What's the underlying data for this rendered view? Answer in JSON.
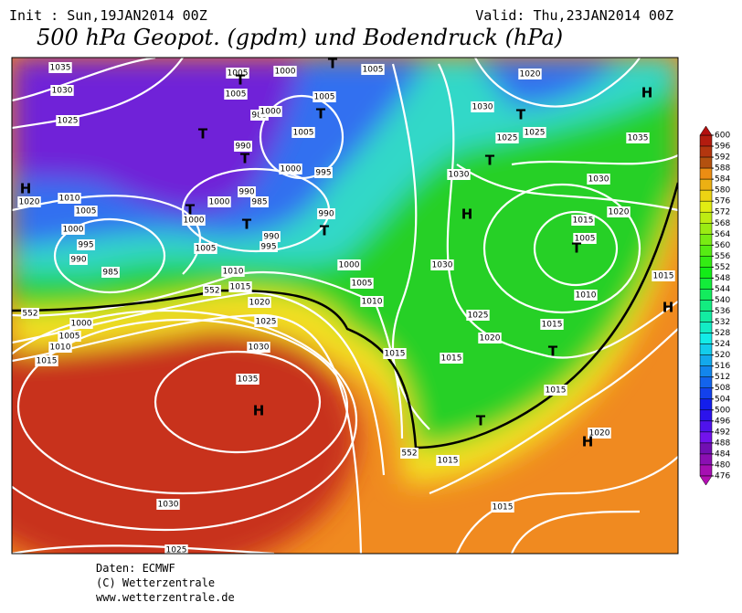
{
  "header": {
    "init": "Init : Sun,19JAN2014 00Z",
    "valid": "Valid: Thu,23JAN2014 00Z",
    "title": "500 hPa Geopot. (gpdm) und Bodendruck (hPa)"
  },
  "colorbar": {
    "ticks": [
      600,
      596,
      592,
      588,
      584,
      580,
      576,
      572,
      568,
      564,
      560,
      556,
      552,
      548,
      544,
      540,
      536,
      532,
      528,
      524,
      520,
      516,
      512,
      508,
      504,
      500,
      496,
      492,
      488,
      484,
      480,
      476
    ]
  },
  "isobar_labels": [
    "1035",
    "1030",
    "1025",
    "1020",
    "1010",
    "1005",
    "1000",
    "995",
    "990",
    "985",
    "1005",
    "1000",
    "1000",
    "985",
    "990",
    "990",
    "985",
    "1000",
    "1005",
    "1005",
    "1000",
    "1005",
    "1005",
    "1005",
    "1000",
    "995",
    "990",
    "990",
    "995",
    "1000",
    "1005",
    "1010",
    "1015",
    "1020",
    "1025",
    "1030",
    "1035",
    "1000",
    "1005",
    "1010",
    "1015",
    "1010",
    "1015",
    "1030",
    "1025",
    "1025",
    "1020",
    "1035",
    "1030",
    "1030",
    "1015",
    "1020",
    "1005",
    "1010",
    "1015",
    "1030",
    "1025",
    "1020",
    "1015",
    "1015",
    "1015",
    "1020",
    "1015",
    "1015",
    "1030",
    "1025",
    "552",
    "552",
    "552"
  ],
  "centers": [
    "H",
    "H",
    "H",
    "H",
    "H",
    "H",
    "T",
    "T",
    "T",
    "T",
    "T",
    "T",
    "T",
    "T",
    "T",
    "T",
    "T",
    "T",
    "T"
  ],
  "footer": [
    "Daten: ECMWF",
    "(C) Wetterzentrale",
    "www.wetterzentrale.de"
  ]
}
